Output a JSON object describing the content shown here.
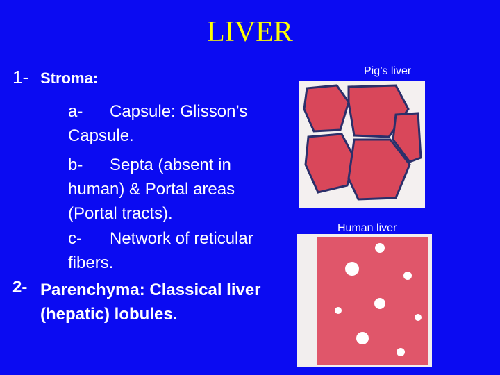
{
  "title": "LIVER",
  "items": [
    {
      "marker": "1-",
      "text": "Stroma:",
      "subitems": [
        {
          "marker": "a-",
          "text": "Capsule: Glisson’s Capsule."
        },
        {
          "marker": "b-",
          "text": "Septa (absent in human) & Portal areas (Portal tracts)."
        },
        {
          "marker": "c-",
          "text": "Network of reticular fibers."
        }
      ]
    },
    {
      "marker": "2-",
      "text": "Parenchyma: Classical liver (hepatic) lobules."
    }
  ],
  "figures": [
    {
      "caption": "Pig’s liver"
    },
    {
      "caption": "Human liver"
    }
  ]
}
